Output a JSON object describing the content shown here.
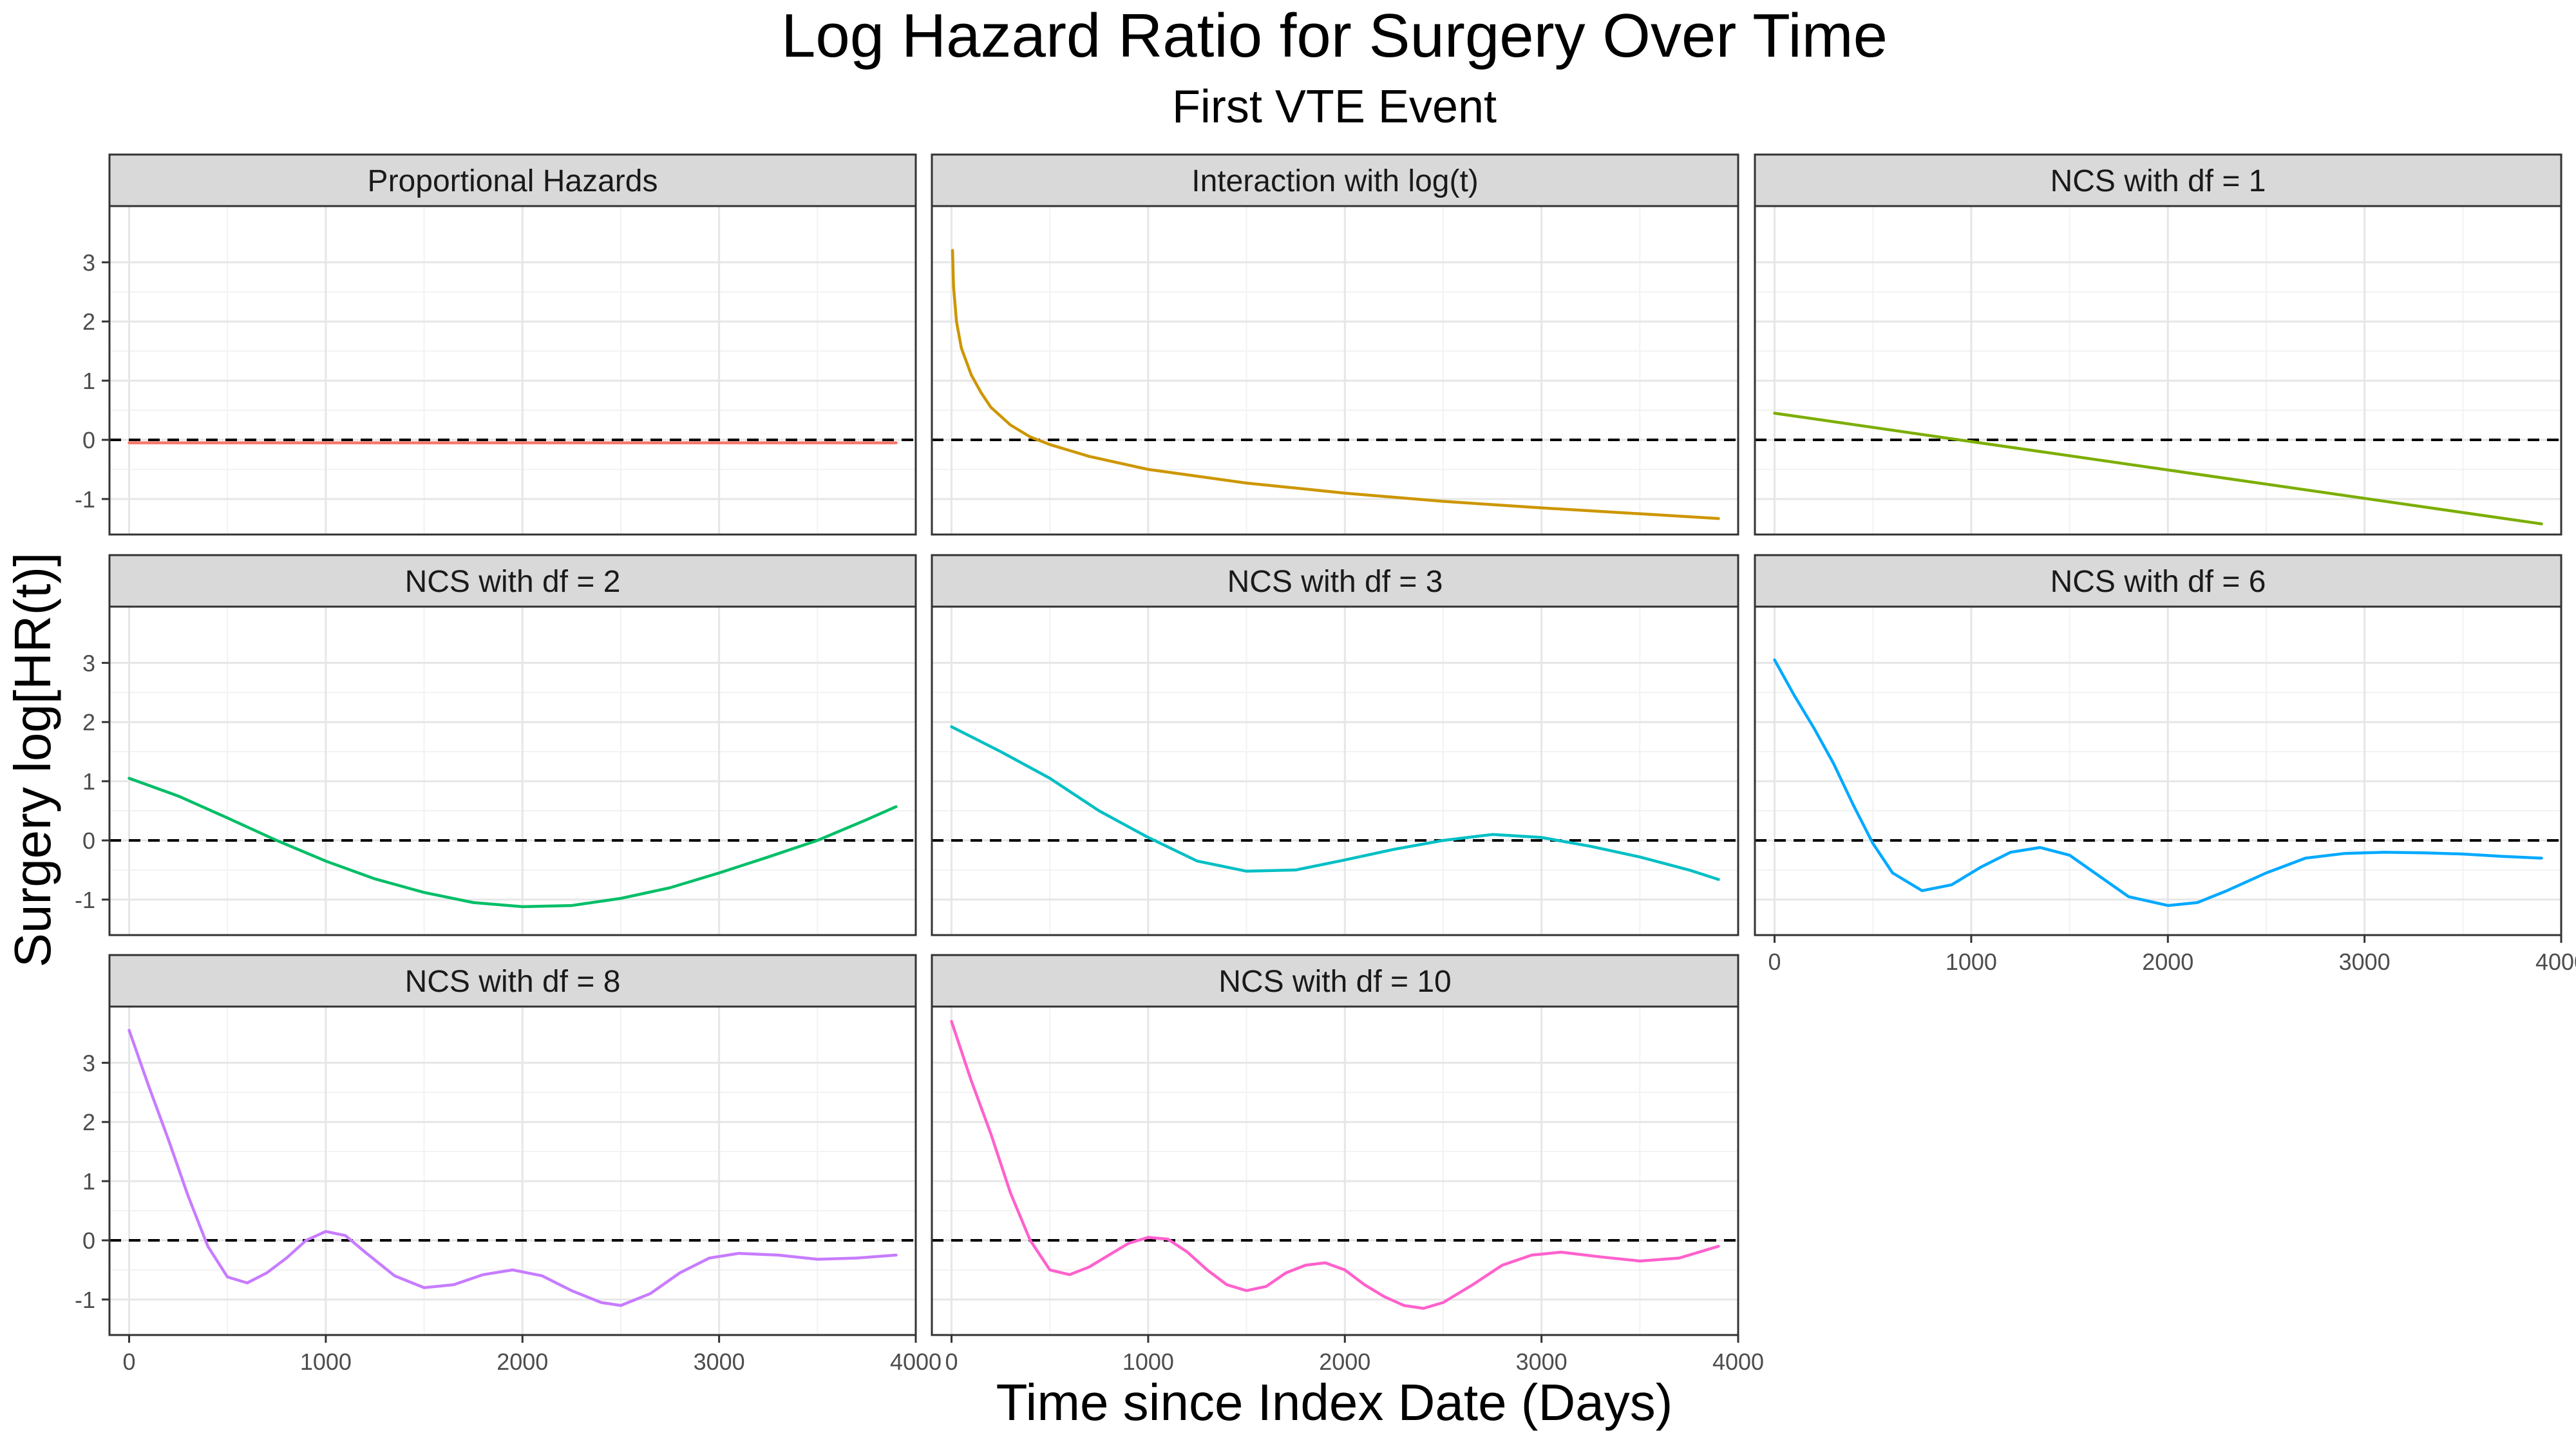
{
  "chart_data": {
    "type": "line",
    "title": "Log Hazard Ratio for Surgery Over Time",
    "subtitle": "First VTE Event",
    "xlabel": "Time since Index Date (Days)",
    "ylabel": "Surgery log[HR(t)]",
    "xlim": [
      -100,
      4000
    ],
    "ylim": [
      -1.6,
      3.95
    ],
    "x_ticks": [
      0,
      1000,
      2000,
      3000,
      4000
    ],
    "x_tick_labels": [
      "0",
      "1000",
      "2000",
      "3000",
      "4000"
    ],
    "y_ticks": [
      -1,
      0,
      1,
      2,
      3
    ],
    "y_tick_labels": [
      "-1",
      "0",
      "1",
      "2",
      "3"
    ],
    "reference_line": {
      "y": 0,
      "style": "dashed",
      "color": "#000000"
    },
    "grid": true,
    "facets": [
      {
        "name": "Proportional Hazards",
        "color": "#F8766D",
        "points": [
          [
            0,
            -0.05
          ],
          [
            3900,
            -0.05
          ]
        ]
      },
      {
        "name": "Interaction with log(t)",
        "color": "#CD9600",
        "points": [
          [
            5,
            3.2
          ],
          [
            10,
            2.6
          ],
          [
            25,
            2.0
          ],
          [
            50,
            1.55
          ],
          [
            100,
            1.1
          ],
          [
            150,
            0.8
          ],
          [
            200,
            0.55
          ],
          [
            300,
            0.25
          ],
          [
            400,
            0.05
          ],
          [
            500,
            -0.08
          ],
          [
            700,
            -0.28
          ],
          [
            1000,
            -0.5
          ],
          [
            1500,
            -0.73
          ],
          [
            2000,
            -0.9
          ],
          [
            2500,
            -1.04
          ],
          [
            3000,
            -1.15
          ],
          [
            3500,
            -1.25
          ],
          [
            3900,
            -1.33
          ]
        ]
      },
      {
        "name": "NCS with df = 1",
        "color": "#7CAE00",
        "points": [
          [
            0,
            0.45
          ],
          [
            3900,
            -1.42
          ]
        ]
      },
      {
        "name": "NCS with df = 2",
        "color": "#00BE67",
        "points": [
          [
            0,
            1.05
          ],
          [
            250,
            0.75
          ],
          [
            500,
            0.38
          ],
          [
            750,
            0.0
          ],
          [
            1000,
            -0.35
          ],
          [
            1250,
            -0.65
          ],
          [
            1500,
            -0.88
          ],
          [
            1750,
            -1.05
          ],
          [
            2000,
            -1.12
          ],
          [
            2250,
            -1.1
          ],
          [
            2500,
            -0.98
          ],
          [
            2750,
            -0.8
          ],
          [
            3000,
            -0.55
          ],
          [
            3250,
            -0.28
          ],
          [
            3500,
            0.0
          ],
          [
            3750,
            0.35
          ],
          [
            3900,
            0.57
          ]
        ]
      },
      {
        "name": "NCS with df = 3",
        "color": "#00BFC4",
        "points": [
          [
            0,
            1.92
          ],
          [
            250,
            1.5
          ],
          [
            500,
            1.05
          ],
          [
            750,
            0.5
          ],
          [
            1000,
            0.05
          ],
          [
            1250,
            -0.35
          ],
          [
            1500,
            -0.52
          ],
          [
            1750,
            -0.5
          ],
          [
            2000,
            -0.33
          ],
          [
            2250,
            -0.15
          ],
          [
            2500,
            0.0
          ],
          [
            2750,
            0.1
          ],
          [
            3000,
            0.05
          ],
          [
            3250,
            -0.1
          ],
          [
            3500,
            -0.28
          ],
          [
            3750,
            -0.5
          ],
          [
            3900,
            -0.66
          ]
        ]
      },
      {
        "name": "NCS with df = 6",
        "color": "#00A9FF",
        "points": [
          [
            0,
            3.05
          ],
          [
            100,
            2.45
          ],
          [
            200,
            1.9
          ],
          [
            300,
            1.3
          ],
          [
            400,
            0.6
          ],
          [
            500,
            -0.05
          ],
          [
            600,
            -0.55
          ],
          [
            750,
            -0.85
          ],
          [
            900,
            -0.75
          ],
          [
            1050,
            -0.45
          ],
          [
            1200,
            -0.2
          ],
          [
            1350,
            -0.12
          ],
          [
            1500,
            -0.25
          ],
          [
            1650,
            -0.6
          ],
          [
            1800,
            -0.95
          ],
          [
            2000,
            -1.1
          ],
          [
            2150,
            -1.05
          ],
          [
            2300,
            -0.85
          ],
          [
            2500,
            -0.55
          ],
          [
            2700,
            -0.3
          ],
          [
            2900,
            -0.22
          ],
          [
            3100,
            -0.2
          ],
          [
            3300,
            -0.21
          ],
          [
            3500,
            -0.23
          ],
          [
            3700,
            -0.27
          ],
          [
            3900,
            -0.3
          ]
        ]
      },
      {
        "name": "NCS with df = 8",
        "color": "#C77CFF",
        "points": [
          [
            0,
            3.55
          ],
          [
            100,
            2.6
          ],
          [
            200,
            1.7
          ],
          [
            300,
            0.75
          ],
          [
            400,
            -0.1
          ],
          [
            500,
            -0.62
          ],
          [
            600,
            -0.72
          ],
          [
            700,
            -0.55
          ],
          [
            800,
            -0.3
          ],
          [
            900,
            0.0
          ],
          [
            1000,
            0.15
          ],
          [
            1100,
            0.08
          ],
          [
            1200,
            -0.2
          ],
          [
            1350,
            -0.6
          ],
          [
            1500,
            -0.8
          ],
          [
            1650,
            -0.75
          ],
          [
            1800,
            -0.58
          ],
          [
            1950,
            -0.5
          ],
          [
            2100,
            -0.6
          ],
          [
            2250,
            -0.85
          ],
          [
            2400,
            -1.05
          ],
          [
            2500,
            -1.1
          ],
          [
            2650,
            -0.9
          ],
          [
            2800,
            -0.55
          ],
          [
            2950,
            -0.3
          ],
          [
            3100,
            -0.22
          ],
          [
            3300,
            -0.25
          ],
          [
            3500,
            -0.32
          ],
          [
            3700,
            -0.3
          ],
          [
            3900,
            -0.25
          ]
        ]
      },
      {
        "name": "NCS with df = 10",
        "color": "#FF61CC",
        "points": [
          [
            0,
            3.7
          ],
          [
            100,
            2.7
          ],
          [
            200,
            1.8
          ],
          [
            300,
            0.8
          ],
          [
            400,
            0.0
          ],
          [
            500,
            -0.5
          ],
          [
            600,
            -0.58
          ],
          [
            700,
            -0.45
          ],
          [
            800,
            -0.25
          ],
          [
            900,
            -0.05
          ],
          [
            1000,
            0.05
          ],
          [
            1100,
            0.02
          ],
          [
            1200,
            -0.2
          ],
          [
            1300,
            -0.5
          ],
          [
            1400,
            -0.75
          ],
          [
            1500,
            -0.85
          ],
          [
            1600,
            -0.78
          ],
          [
            1700,
            -0.55
          ],
          [
            1800,
            -0.42
          ],
          [
            1900,
            -0.38
          ],
          [
            2000,
            -0.5
          ],
          [
            2100,
            -0.75
          ],
          [
            2200,
            -0.95
          ],
          [
            2300,
            -1.1
          ],
          [
            2400,
            -1.15
          ],
          [
            2500,
            -1.05
          ],
          [
            2650,
            -0.75
          ],
          [
            2800,
            -0.42
          ],
          [
            2950,
            -0.25
          ],
          [
            3100,
            -0.2
          ],
          [
            3300,
            -0.28
          ],
          [
            3500,
            -0.35
          ],
          [
            3700,
            -0.3
          ],
          [
            3900,
            -0.1
          ]
        ]
      }
    ]
  }
}
